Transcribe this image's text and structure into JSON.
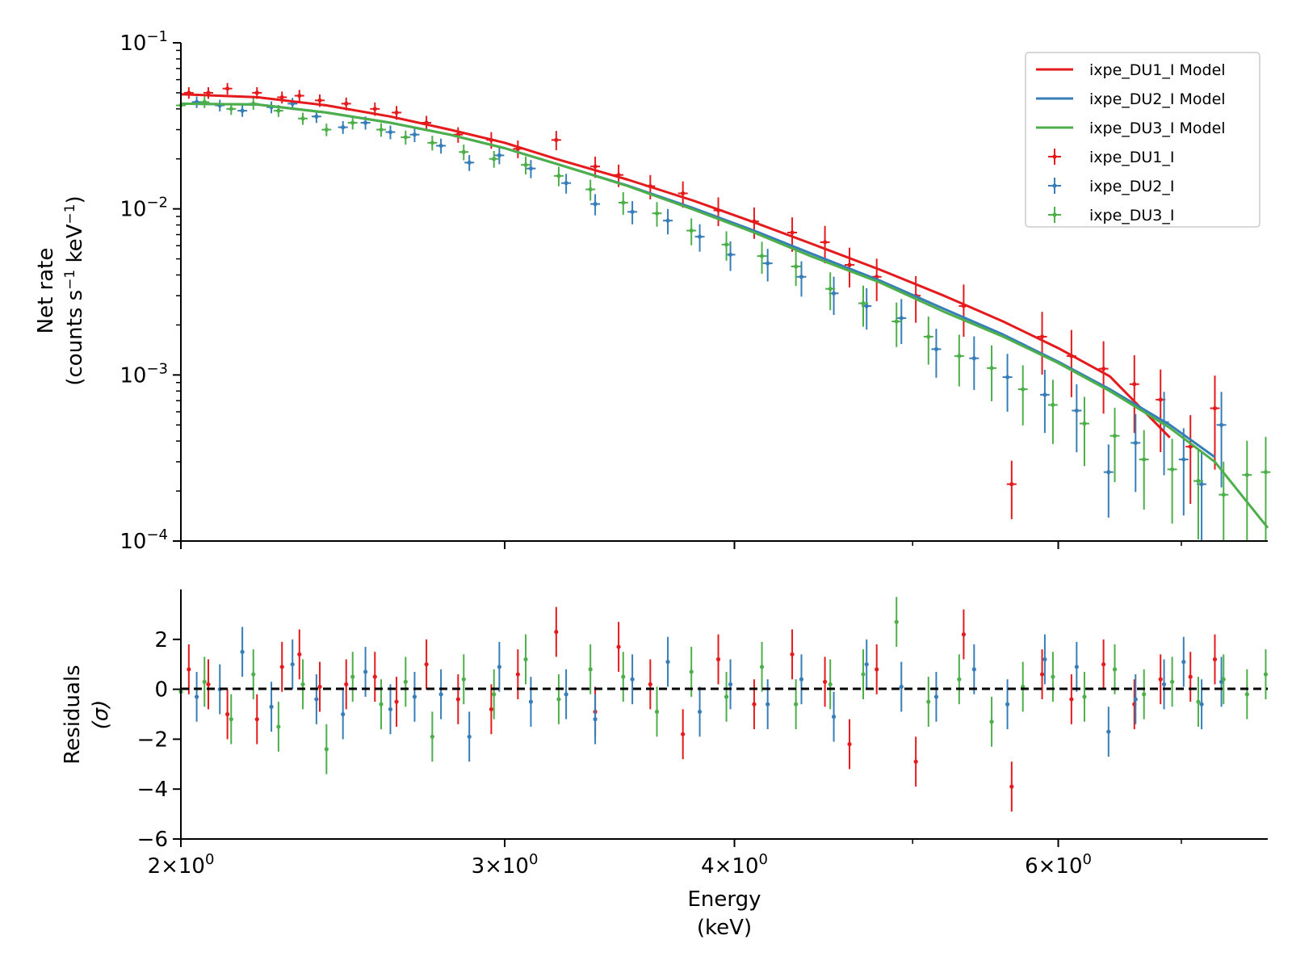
{
  "chart_data": [
    {
      "panel": "top",
      "type": "line+errorbar",
      "yscale": "log",
      "xscale": "log",
      "ylabel_line1": "Net rate",
      "ylabel_line2_parts": [
        "(counts s",
        "−1",
        " keV",
        "−1",
        ")"
      ],
      "xlim": [
        2.0,
        7.8
      ],
      "ylim": [
        0.0001,
        0.1
      ],
      "ytick_labels": [
        {
          "value": 0.1,
          "base": "10",
          "exp": "−1"
        },
        {
          "value": 0.01,
          "base": "10",
          "exp": "−2"
        },
        {
          "value": 0.001,
          "base": "10",
          "exp": "−3"
        },
        {
          "value": 0.0001,
          "base": "10",
          "exp": "−4"
        }
      ],
      "legend": {
        "position": "top-right",
        "entries": [
          {
            "label": "ixpe_DU1_I Model",
            "kind": "line",
            "color": "#e41a1c"
          },
          {
            "label": "ixpe_DU2_I Model",
            "kind": "line",
            "color": "#377eb8"
          },
          {
            "label": "ixpe_DU3_I Model",
            "kind": "line",
            "color": "#4daf4a"
          },
          {
            "label": "ixpe_DU1_I",
            "kind": "errorbar",
            "color": "#e41a1c"
          },
          {
            "label": "ixpe_DU2_I",
            "kind": "errorbar",
            "color": "#377eb8"
          },
          {
            "label": "ixpe_DU3_I",
            "kind": "errorbar",
            "color": "#4daf4a"
          }
        ]
      },
      "series": [
        {
          "name": "ixpe_DU1_I Model",
          "color": "#e41a1c",
          "x": [
            2.0,
            2.2,
            2.4,
            2.6,
            2.8,
            3.0,
            3.2,
            3.5,
            3.8,
            4.1,
            4.4,
            4.8,
            5.2,
            5.6,
            6.0,
            6.4,
            6.9
          ],
          "y": [
            0.049,
            0.047,
            0.042,
            0.036,
            0.03,
            0.025,
            0.02,
            0.015,
            0.0112,
            0.0083,
            0.0062,
            0.0043,
            0.003,
            0.0021,
            0.00145,
            0.00098,
            0.00042
          ]
        },
        {
          "name": "ixpe_DU2_I Model",
          "color": "#377eb8",
          "x": [
            2.0,
            2.2,
            2.4,
            2.6,
            2.8,
            3.0,
            3.2,
            3.5,
            3.8,
            4.1,
            4.4,
            4.8,
            5.2,
            5.6,
            6.0,
            6.4,
            6.9,
            7.3
          ],
          "y": [
            0.043,
            0.0425,
            0.038,
            0.033,
            0.028,
            0.0232,
            0.0187,
            0.0138,
            0.0101,
            0.0074,
            0.0054,
            0.0037,
            0.0025,
            0.00175,
            0.0012,
            0.00082,
            0.0005,
            0.00032
          ]
        },
        {
          "name": "ixpe_DU3_I Model",
          "color": "#4daf4a",
          "x": [
            2.0,
            2.2,
            2.4,
            2.6,
            2.8,
            3.0,
            3.2,
            3.5,
            3.8,
            4.1,
            4.4,
            4.8,
            5.2,
            5.6,
            6.0,
            6.4,
            6.9,
            7.3,
            7.8
          ],
          "y": [
            0.043,
            0.0425,
            0.038,
            0.033,
            0.028,
            0.0232,
            0.0187,
            0.0137,
            0.0099,
            0.0072,
            0.0052,
            0.0036,
            0.0024,
            0.0017,
            0.00118,
            0.0008,
            0.00048,
            0.0003,
            0.00012
          ]
        }
      ],
      "data_points": [
        {
          "name": "ixpe_DU1_I",
          "color": "#e41a1c",
          "x": [
            2.02,
            2.07,
            2.12,
            2.2,
            2.27,
            2.32,
            2.38,
            2.46,
            2.55,
            2.62,
            2.72,
            2.83,
            2.95,
            3.05,
            3.2,
            3.36,
            3.46,
            3.6,
            3.75,
            3.92,
            4.1,
            4.3,
            4.48,
            4.62,
            4.78,
            5.02,
            5.33,
            5.66,
            5.88,
            6.1,
            6.35,
            6.6,
            6.82,
            7.08,
            7.3
          ],
          "y": [
            0.05,
            0.05,
            0.053,
            0.05,
            0.047,
            0.048,
            0.045,
            0.043,
            0.04,
            0.038,
            0.033,
            0.028,
            0.026,
            0.023,
            0.026,
            0.018,
            0.016,
            0.0137,
            0.0124,
            0.0098,
            0.0084,
            0.0072,
            0.0063,
            0.0046,
            0.0039,
            0.003,
            0.0026,
            0.00022,
            0.0017,
            0.0013,
            0.00109,
            0.00088,
            0.00071,
            0.00037,
            0.00063
          ]
        },
        {
          "name": "ixpe_DU2_I",
          "color": "#377eb8",
          "x": [
            2.04,
            2.1,
            2.16,
            2.24,
            2.3,
            2.37,
            2.45,
            2.52,
            2.6,
            2.68,
            2.77,
            2.87,
            2.98,
            3.1,
            3.24,
            3.36,
            3.52,
            3.68,
            3.83,
            3.98,
            4.17,
            4.35,
            4.53,
            4.72,
            4.93,
            5.15,
            5.4,
            5.63,
            5.9,
            6.14,
            6.39,
            6.61,
            6.85,
            7.02,
            7.18,
            7.36
          ],
          "y": [
            0.044,
            0.042,
            0.039,
            0.041,
            0.043,
            0.036,
            0.031,
            0.033,
            0.029,
            0.028,
            0.024,
            0.019,
            0.021,
            0.0175,
            0.0143,
            0.0107,
            0.0096,
            0.0085,
            0.0068,
            0.0053,
            0.0047,
            0.0039,
            0.0031,
            0.0026,
            0.0022,
            0.00143,
            0.00126,
            0.00097,
            0.00076,
            0.00061,
            0.00026,
            0.00039,
            0.00052,
            0.00031,
            0.00022,
            0.0005
          ]
        },
        {
          "name": "ixpe_DU3_I",
          "color": "#4daf4a",
          "x": [
            2.0,
            2.06,
            2.13,
            2.19,
            2.26,
            2.33,
            2.4,
            2.48,
            2.57,
            2.65,
            2.74,
            2.85,
            2.96,
            3.08,
            3.21,
            3.34,
            3.48,
            3.63,
            3.79,
            3.96,
            4.14,
            4.32,
            4.51,
            4.7,
            4.9,
            5.1,
            5.3,
            5.52,
            5.74,
            5.96,
            6.2,
            6.44,
            6.68,
            6.92,
            7.15,
            7.38,
            7.6,
            7.78
          ],
          "y": [
            0.042,
            0.044,
            0.04,
            0.043,
            0.039,
            0.035,
            0.03,
            0.033,
            0.03,
            0.027,
            0.025,
            0.022,
            0.02,
            0.0184,
            0.0158,
            0.0131,
            0.0109,
            0.0094,
            0.0074,
            0.0061,
            0.0052,
            0.0045,
            0.0033,
            0.0027,
            0.0021,
            0.0017,
            0.0013,
            0.0011,
            0.00082,
            0.00066,
            0.00051,
            0.00043,
            0.00031,
            0.00027,
            0.00023,
            0.00019,
            0.00025,
            0.00026
          ]
        }
      ]
    },
    {
      "panel": "bottom",
      "type": "errorbar",
      "xscale": "log",
      "xlabel_line1": "Energy",
      "xlabel_line2": "(keV)",
      "ylabel_line1": "Residuals",
      "ylabel_line2": "(σ)",
      "xlim": [
        2.0,
        7.8
      ],
      "ylim": [
        -6,
        4
      ],
      "yticks": [
        2,
        0,
        -2,
        -4,
        -6
      ],
      "ytick_labels": [
        "2",
        "0",
        "−2",
        "−4",
        "−6"
      ],
      "xtick_labels": [
        {
          "value": 2,
          "mant": "2",
          "exp": "0"
        },
        {
          "value": 3,
          "mant": "3",
          "exp": "0"
        },
        {
          "value": 4,
          "mant": "4",
          "exp": "0"
        },
        {
          "value": 6,
          "mant": "6",
          "exp": "0"
        }
      ],
      "zero_line": 0,
      "series": [
        {
          "name": "ixpe_DU1_I",
          "color": "#e41a1c",
          "x": [
            2.02,
            2.07,
            2.12,
            2.2,
            2.27,
            2.32,
            2.38,
            2.46,
            2.55,
            2.62,
            2.72,
            2.83,
            2.95,
            3.05,
            3.2,
            3.36,
            3.46,
            3.6,
            3.75,
            3.92,
            4.1,
            4.3,
            4.48,
            4.62,
            4.78,
            5.02,
            5.33,
            5.66,
            5.88,
            6.1,
            6.35,
            6.6,
            6.82,
            7.08,
            7.3
          ],
          "y": [
            0.8,
            0.2,
            -1.0,
            -1.2,
            0.9,
            1.4,
            0.1,
            0.2,
            0.5,
            -0.5,
            1.0,
            -0.4,
            -0.8,
            0.6,
            2.3,
            -0.9,
            1.7,
            0.2,
            -1.8,
            1.2,
            -0.6,
            1.4,
            0.3,
            -2.2,
            0.8,
            -2.9,
            2.2,
            -3.9,
            0.6,
            -0.4,
            1.0,
            -0.6,
            0.4,
            0.5,
            1.2
          ]
        },
        {
          "name": "ixpe_DU2_I",
          "color": "#377eb8",
          "x": [
            2.04,
            2.1,
            2.16,
            2.24,
            2.3,
            2.37,
            2.45,
            2.52,
            2.6,
            2.68,
            2.77,
            2.87,
            2.98,
            3.1,
            3.24,
            3.36,
            3.52,
            3.68,
            3.83,
            3.98,
            4.17,
            4.35,
            4.53,
            4.72,
            4.93,
            5.15,
            5.4,
            5.63,
            5.9,
            6.14,
            6.39,
            6.61,
            6.85,
            7.02,
            7.18,
            7.36
          ],
          "y": [
            -0.3,
            0.0,
            1.5,
            -0.7,
            1.0,
            -0.4,
            -1.0,
            0.7,
            -0.8,
            -0.3,
            -0.2,
            -1.9,
            0.9,
            -0.5,
            -0.2,
            -1.2,
            0.4,
            1.1,
            -0.9,
            0.2,
            -0.6,
            0.4,
            -1.1,
            1.0,
            0.1,
            -0.3,
            0.8,
            -0.6,
            1.2,
            0.9,
            -1.7,
            -0.4,
            0.2,
            1.1,
            -0.6,
            0.3
          ]
        },
        {
          "name": "ixpe_DU3_I",
          "color": "#4daf4a",
          "x": [
            2.0,
            2.06,
            2.13,
            2.19,
            2.26,
            2.33,
            2.4,
            2.48,
            2.57,
            2.65,
            2.74,
            2.85,
            2.96,
            3.08,
            3.21,
            3.34,
            3.48,
            3.63,
            3.79,
            3.96,
            4.14,
            4.32,
            4.51,
            4.7,
            4.9,
            5.1,
            5.3,
            5.52,
            5.74,
            5.96,
            6.2,
            6.44,
            6.68,
            6.92,
            7.15,
            7.38,
            7.6,
            7.78
          ],
          "y": [
            -0.1,
            0.3,
            -1.2,
            0.6,
            -1.5,
            0.2,
            -2.4,
            0.5,
            -0.6,
            0.3,
            -1.9,
            0.4,
            -0.2,
            1.2,
            -0.4,
            0.8,
            0.5,
            -0.9,
            0.7,
            -0.3,
            0.9,
            -0.6,
            0.2,
            0.6,
            2.7,
            -0.5,
            0.4,
            -1.3,
            0.1,
            0.5,
            -0.3,
            0.8,
            -0.2,
            0.3,
            -0.5,
            0.4,
            -0.2,
            0.6
          ]
        }
      ]
    }
  ]
}
